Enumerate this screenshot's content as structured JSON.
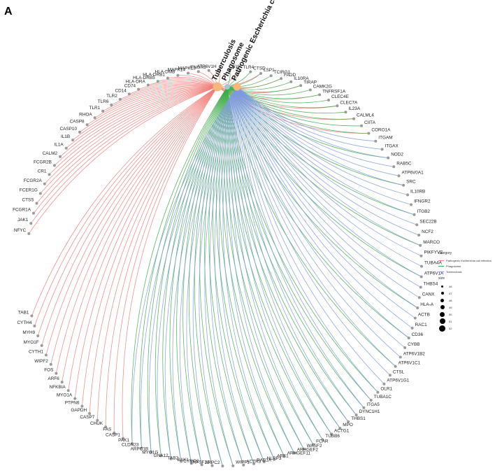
{
  "panel_label": "A",
  "legend": {
    "category_title": "category",
    "categories": [
      {
        "name": "Pathogenic Escherichia coli infection",
        "color": "#f07f7a"
      },
      {
        "name": "Phagosome",
        "color": "#40ad4a"
      },
      {
        "name": "Tuberculosis",
        "color": "#7f9ae0"
      }
    ],
    "size_title": "size",
    "sizes": [
      "46",
      "47",
      "48",
      "49",
      "50",
      "51",
      "52"
    ]
  },
  "pathways": [
    {
      "name": "Tuberculosis",
      "color": "#f4b97a"
    },
    {
      "name": "Phagosome",
      "color": "#a2c8d6"
    },
    {
      "name": "Pathogenic Escherichia coli infection",
      "color": "#f4b97a"
    }
  ],
  "genes": [
    "NFYC",
    "JAK1",
    "FCGR1A",
    "CTSS",
    "FCER1G",
    "FCGR2A",
    "CR1",
    "FCGR2B",
    "CALM2",
    "IL1A",
    "IL1B",
    "CASP10",
    "CASP8",
    "RHOA",
    "TLR1",
    "TLR6",
    "TLR2",
    "CD14",
    "CD74",
    "HLA-DRA",
    "HLA-DRB5",
    "HLA-DRB1",
    "HLA-DMB",
    "MAPK14",
    "MAPK13",
    "IFNGR1",
    "ATP6V1H",
    "SYK",
    "TLR4",
    "CTSD",
    "LSP1",
    "TCIRG1",
    "FADD",
    "IL10RA",
    "TIRAP",
    "CAMK2G",
    "TNFRSF1A",
    "CLEC4E",
    "CLEC7A",
    "IL23A",
    "CALML4",
    "CIITA",
    "CORO1A",
    "ITGAM",
    "ITGAX",
    "NOD2",
    "RAB5C",
    "ATP6V0A1",
    "SRC",
    "IL10RB",
    "IFNGR2",
    "ITGB2",
    "SEC22B",
    "NCF2",
    "MARCO",
    "PIKFYVE",
    "TUBA4A",
    "ATP6V1A",
    "THBS4",
    "CANX",
    "HLA-A",
    "ACTB",
    "RAC1",
    "CD36",
    "CYBB",
    "ATP6V1B2",
    "ATP6V1C1",
    "CTSL",
    "ATP6V1G1",
    "OLR1",
    "TUBA1C",
    "ITGA5",
    "DYNC1H1",
    "THBS1",
    "MPO",
    "ACTG1",
    "TUBB6",
    "FCAR",
    "WASF2",
    "ARHGEF2",
    "ARHGEF11",
    "ARF1",
    "NLRP3",
    "RAB1A",
    "ACTR3",
    "WIPF1",
    "ARPC2",
    "TNFSF10",
    "CYFIP2",
    "BAK1",
    "TAB2",
    "GNA12",
    "MYO1G",
    "ARPC1B",
    "CLDN23",
    "PAK1",
    "CASP1",
    "FAS",
    "CHUK",
    "CASP7",
    "GAPDH",
    "PTPN6",
    "MYO1A",
    "NFKBIA",
    "ARF6",
    "FOS",
    "WIPF2",
    "CYTH1",
    "MYO1F",
    "MYH9",
    "CYTH4",
    "TAB1"
  ]
}
